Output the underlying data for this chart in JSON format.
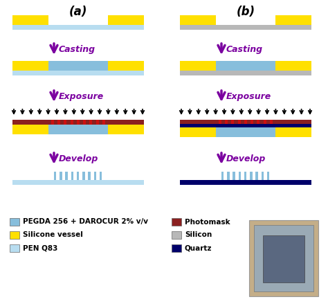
{
  "colors": {
    "pegda": "#87BEDC",
    "silicone": "#FFE000",
    "pen": "#B8DDF0",
    "photomask": "#8B2020",
    "silicon": "#B8B8B8",
    "quartz": "#00006A",
    "arrow_purple": "#7B00A0",
    "background": "#FFFFFF",
    "uv_arrow": "#000000",
    "dashed_red": "#CC1111"
  },
  "label_a": "(a)",
  "label_b": "(b)",
  "step_labels": [
    "Casting",
    "Exposure",
    "Develop"
  ]
}
